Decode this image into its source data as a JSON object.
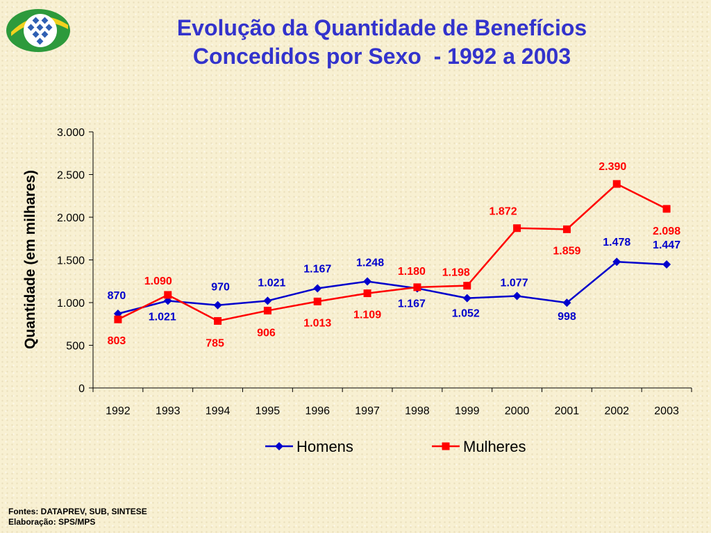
{
  "title": {
    "line1": "Evolução da Quantidade de Benefícios",
    "line2": "Concedidos por Sexo  - 1992 a 2003"
  },
  "logo": {
    "icon": "inss-logo-icon"
  },
  "colors": {
    "title": "#3333cc",
    "homens": "#0000cc",
    "mulheres": "#ff0000"
  },
  "chart_data": {
    "type": "line",
    "ylabel": "Quantidade (em milhares)",
    "xlabel": "",
    "ylim": [
      0,
      3000
    ],
    "yticks": [
      0,
      500,
      1000,
      1500,
      2000,
      2500,
      3000
    ],
    "ytick_labels": [
      "0",
      "500",
      "1.000",
      "1.500",
      "2.000",
      "2.500",
      "3.000"
    ],
    "grid": false,
    "legend_position": "bottom",
    "categories": [
      "1992",
      "1993",
      "1994",
      "1995",
      "1996",
      "1997",
      "1998",
      "1999",
      "2000",
      "2001",
      "2002",
      "2003"
    ],
    "series": [
      {
        "name": "Homens",
        "marker": "diamond",
        "values": [
          870,
          1021,
          970,
          1021,
          1167,
          1248,
          1167,
          1052,
          1077,
          998,
          1478,
          1447
        ],
        "labels": [
          "870",
          "1.021",
          "970",
          "1.021",
          "1.167",
          "1.248",
          "1.167",
          "1.052",
          "1.077",
          "998",
          "1.478",
          "1.447"
        ]
      },
      {
        "name": "Mulheres",
        "marker": "square",
        "values": [
          803,
          1090,
          785,
          906,
          1013,
          1109,
          1180,
          1198,
          1872,
          1859,
          2390,
          2098
        ],
        "labels": [
          "803",
          "1.090",
          "785",
          "906",
          "1.013",
          "1.109",
          "1.180",
          "1.198",
          "1.872",
          "1.859",
          "2.390",
          "2.098"
        ]
      }
    ]
  },
  "footer": {
    "sources": "Fontes: DATAPREV, SUB, SINTESE",
    "credit": "Elaboração: SPS/MPS"
  }
}
